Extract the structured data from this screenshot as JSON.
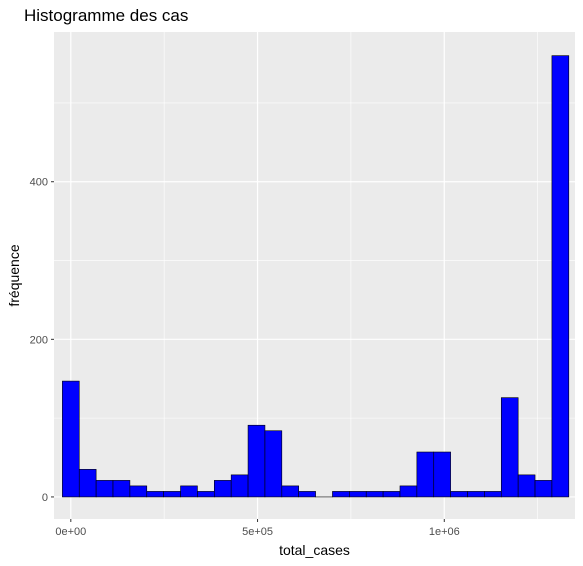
{
  "chart_data": {
    "type": "histogram",
    "title": "Histogramme des cas",
    "xlabel": "total_cases",
    "ylabel": "fréquence",
    "xlim": [
      -45000,
      1350000
    ],
    "ylim": [
      -28,
      590
    ],
    "x_ticks": [
      {
        "value": 0,
        "label": "0e+00"
      },
      {
        "value": 500000,
        "label": "5e+05"
      },
      {
        "value": 1000000,
        "label": "1e+06"
      }
    ],
    "y_ticks": [
      {
        "value": 0,
        "label": "0"
      },
      {
        "value": 200,
        "label": "200"
      },
      {
        "value": 400,
        "label": "400"
      }
    ],
    "bin_start": -22600,
    "bin_width": 45200,
    "counts": [
      147,
      35,
      21,
      21,
      14,
      7,
      7,
      14,
      7,
      21,
      28,
      91,
      84,
      14,
      7,
      0,
      7,
      7,
      7,
      7,
      14,
      57,
      57,
      7,
      7,
      7,
      126,
      28,
      21,
      560
    ],
    "fill_color": "#0000FF",
    "outline_color": "#000000",
    "panel_color": "#EBEBEB",
    "grid": true
  }
}
